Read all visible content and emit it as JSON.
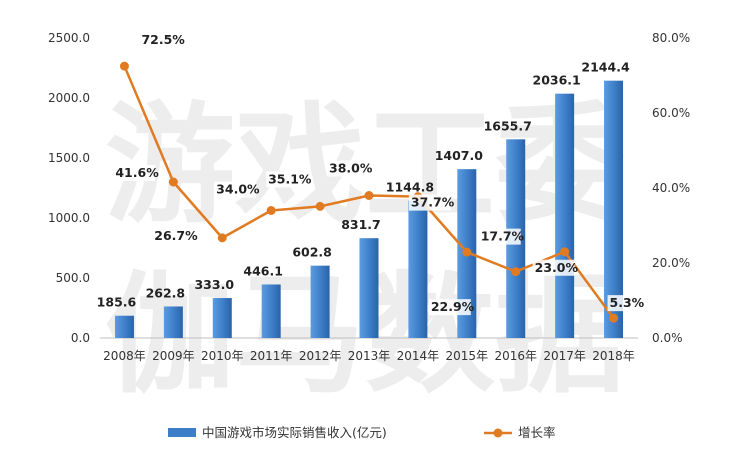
{
  "chart_data": {
    "type": "bar",
    "categories": [
      "2008年",
      "2009年",
      "2010年",
      "2011年",
      "2012年",
      "2013年",
      "2014年",
      "2015年",
      "2016年",
      "2017年",
      "2018年"
    ],
    "series": [
      {
        "name": "中国游戏市场实际销售收入(亿元)",
        "type": "bar",
        "axis": "left",
        "values": [
          185.6,
          262.8,
          333.0,
          446.1,
          602.8,
          831.7,
          1144.8,
          1407.0,
          1655.7,
          2036.1,
          2144.4
        ],
        "labels": [
          "185.6",
          "262.8",
          "333.0",
          "446.1",
          "602.8",
          "831.7",
          "1144.8",
          "1407.0",
          "1655.7",
          "2036.1",
          "2144.4"
        ],
        "color": "#3d7ec8"
      },
      {
        "name": "增长率",
        "type": "line",
        "axis": "right",
        "values": [
          72.5,
          41.6,
          26.7,
          34.0,
          35.1,
          38.0,
          37.7,
          22.9,
          17.7,
          23.0,
          5.3
        ],
        "labels": [
          "72.5%",
          "41.6%",
          "26.7%",
          "34.0%",
          "35.1%",
          "38.0%",
          "37.7%",
          "22.9%",
          "17.7%",
          "23.0%",
          "5.3%"
        ],
        "color": "#e07b22"
      }
    ],
    "y_left": {
      "range": [
        0,
        2500
      ],
      "ticks": [
        "0.0",
        "500.0",
        "1000.0",
        "1500.0",
        "2000.0",
        "2500.0"
      ]
    },
    "y_right": {
      "range": [
        0,
        80
      ],
      "ticks": [
        "0.0%",
        "20.0%",
        "40.0%",
        "60.0%",
        "80.0%"
      ]
    },
    "grid": false,
    "legend": "bottom",
    "watermark": [
      "游戏工委",
      "伽马数据"
    ]
  }
}
